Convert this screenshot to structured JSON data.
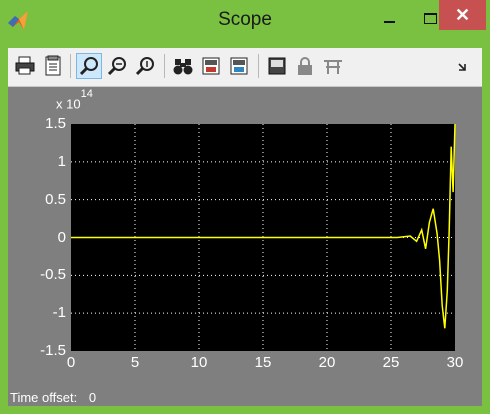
{
  "window": {
    "title": "Scope"
  },
  "titlebar": {
    "close_glyph": "✕"
  },
  "toolbar": {
    "buttons": [
      {
        "name": "print-icon"
      },
      {
        "name": "parameters-icon"
      },
      {
        "name": "zoom-icon",
        "active": true
      },
      {
        "name": "zoom-x-icon"
      },
      {
        "name": "zoom-y-icon"
      },
      {
        "name": "autoscale-icon"
      },
      {
        "name": "save-axes-settings-icon"
      },
      {
        "name": "restore-axes-settings-icon"
      },
      {
        "name": "floating-scope-icon"
      },
      {
        "name": "lock-axes-icon"
      },
      {
        "name": "signal-selection-icon"
      },
      {
        "name": "overflow-chevron-icon"
      }
    ]
  },
  "plot": {
    "exponent_label": "x 10",
    "exponent_power": "14",
    "y_ticks": [
      "1.5",
      "1",
      "0.5",
      "0",
      "-0.5",
      "-1",
      "-1.5"
    ],
    "x_ticks": [
      "0",
      "5",
      "10",
      "15",
      "20",
      "25",
      "30"
    ],
    "background": "#000000",
    "line_color": "#ffff00",
    "grid_color": "#ffffff",
    "time_offset_label": "Time offset:",
    "time_offset_value": "0"
  },
  "chart_data": {
    "type": "line",
    "xlim": [
      0,
      30
    ],
    "ylim": [
      -1.5,
      1.5
    ],
    "y_scale_factor": "x 10^14",
    "grid": true,
    "series": [
      {
        "color": "#ffff00",
        "x": [
          0,
          25.5,
          26.5,
          27.0,
          27.4,
          27.7,
          28.0,
          28.3,
          28.6,
          28.8,
          29.0,
          29.2,
          29.4,
          29.55,
          29.7,
          29.85,
          30.0
        ],
        "y": [
          0,
          0,
          0.02,
          -0.05,
          0.1,
          -0.15,
          0.2,
          0.38,
          0.05,
          -0.3,
          -0.9,
          -1.2,
          -0.7,
          0.1,
          1.2,
          0.6,
          1.5
        ]
      }
    ]
  }
}
